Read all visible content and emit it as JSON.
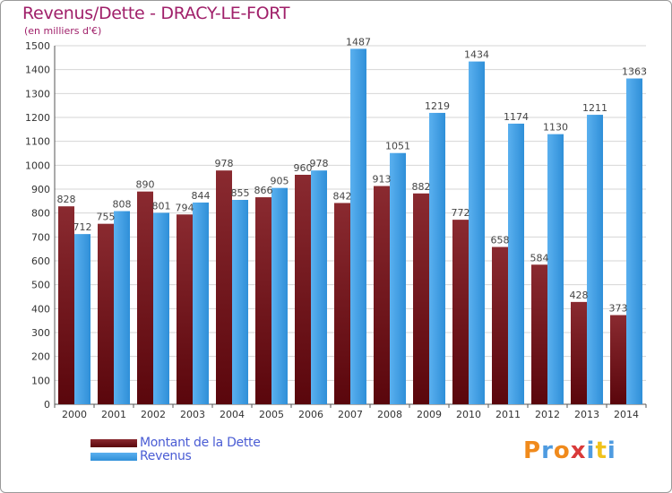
{
  "title": "Revenus/Dette - DRACY-LE-FORT",
  "subtitle": "(en milliers d'€)",
  "logo": {
    "text": "Proxiti",
    "colors": [
      "#f08a1c",
      "#4e9be0",
      "#f08a1c",
      "#d93a3a",
      "#4e9be0",
      "#f0c21c",
      "#4e9be0"
    ]
  },
  "colors": {
    "dette": "#6e1016",
    "revenus": "#3f9ee4",
    "title": "#a0206a",
    "legend_text": "#4a5cd4"
  },
  "chart_data": {
    "type": "bar",
    "title": "Revenus/Dette - DRACY-LE-FORT",
    "ylabel": "(en milliers d'€)",
    "xlabel": "",
    "ylim": [
      0,
      1500
    ],
    "yticks": [
      0,
      100,
      200,
      300,
      400,
      500,
      600,
      700,
      800,
      900,
      1000,
      1100,
      1200,
      1300,
      1400,
      1500
    ],
    "grid": true,
    "legend_position": "bottom-left",
    "categories": [
      "2000",
      "2001",
      "2002",
      "2003",
      "2004",
      "2005",
      "2006",
      "2007",
      "2008",
      "2009",
      "2010",
      "2011",
      "2012",
      "2013",
      "2014"
    ],
    "series": [
      {
        "name": "Montant de la Dette",
        "values": [
          828,
          755,
          890,
          794,
          978,
          866,
          960,
          842,
          913,
          882,
          772,
          658,
          584,
          428,
          373
        ]
      },
      {
        "name": "Revenus",
        "values": [
          712,
          808,
          801,
          844,
          855,
          905,
          978,
          1487,
          1051,
          1219,
          1434,
          1174,
          1130,
          1211,
          1363
        ]
      }
    ]
  }
}
